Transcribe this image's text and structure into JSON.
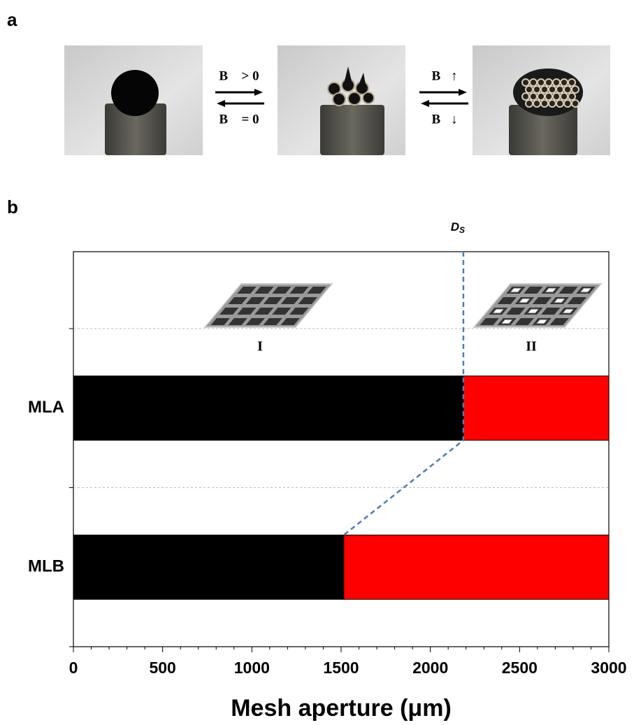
{
  "panel_labels": {
    "a": "a",
    "b": "b"
  },
  "switch_labels": {
    "forward_1": "B⃗ > 0",
    "backward_1": "B⃗ = 0",
    "forward_2": "B⃗↑",
    "backward_2": "B⃗↓"
  },
  "chart_data": {
    "type": "bar",
    "orientation": "horizontal",
    "stacked": true,
    "categories": [
      "MLA",
      "MLB"
    ],
    "series": [
      {
        "color": "#000000",
        "values": [
          2185,
          1515
        ]
      },
      {
        "color": "#ff0000",
        "values": [
          815,
          1485
        ]
      }
    ],
    "xlim": [
      0,
      3000
    ],
    "xticks": [
      0,
      500,
      1000,
      1500,
      2000,
      2500,
      3000
    ],
    "xlabel": "Mesh aperture (μm)",
    "annotations": {
      "critical_label": "D",
      "critical_subscript": "S",
      "region_1": "I",
      "region_2": "II"
    }
  }
}
